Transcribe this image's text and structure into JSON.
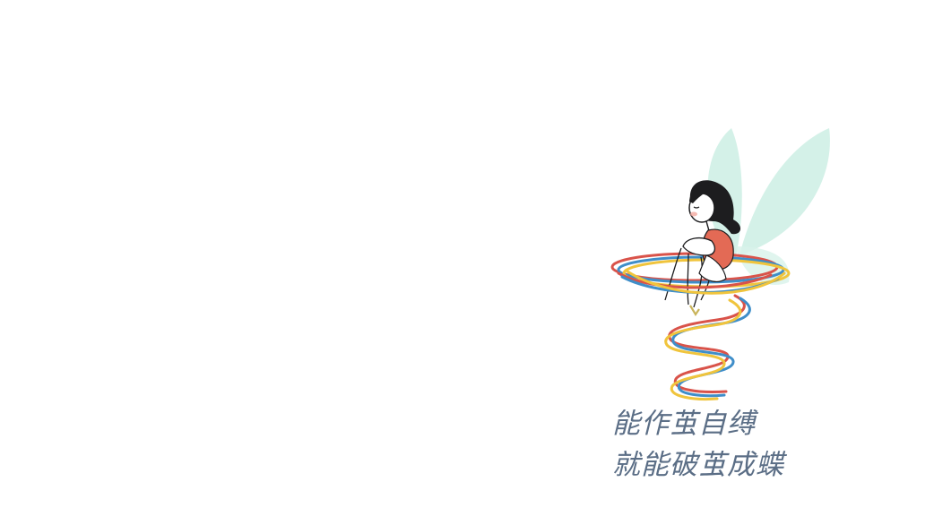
{
  "caption": {
    "line1": "能作茧自缚",
    "line2": "就能破茧成蝶"
  },
  "colors": {
    "background": "#ffffff",
    "wing": "#cdeee4",
    "hair": "#1d1d1f",
    "dress": "#e36a55",
    "skin": "#ffffff",
    "ribbon_red": "#d9534a",
    "ribbon_blue": "#3f8ec9",
    "ribbon_yellow": "#f0c43c",
    "caption_text": "#5b6e86"
  },
  "illustration": {
    "subject": "fairy-girl-on-ribbon-spiral"
  }
}
